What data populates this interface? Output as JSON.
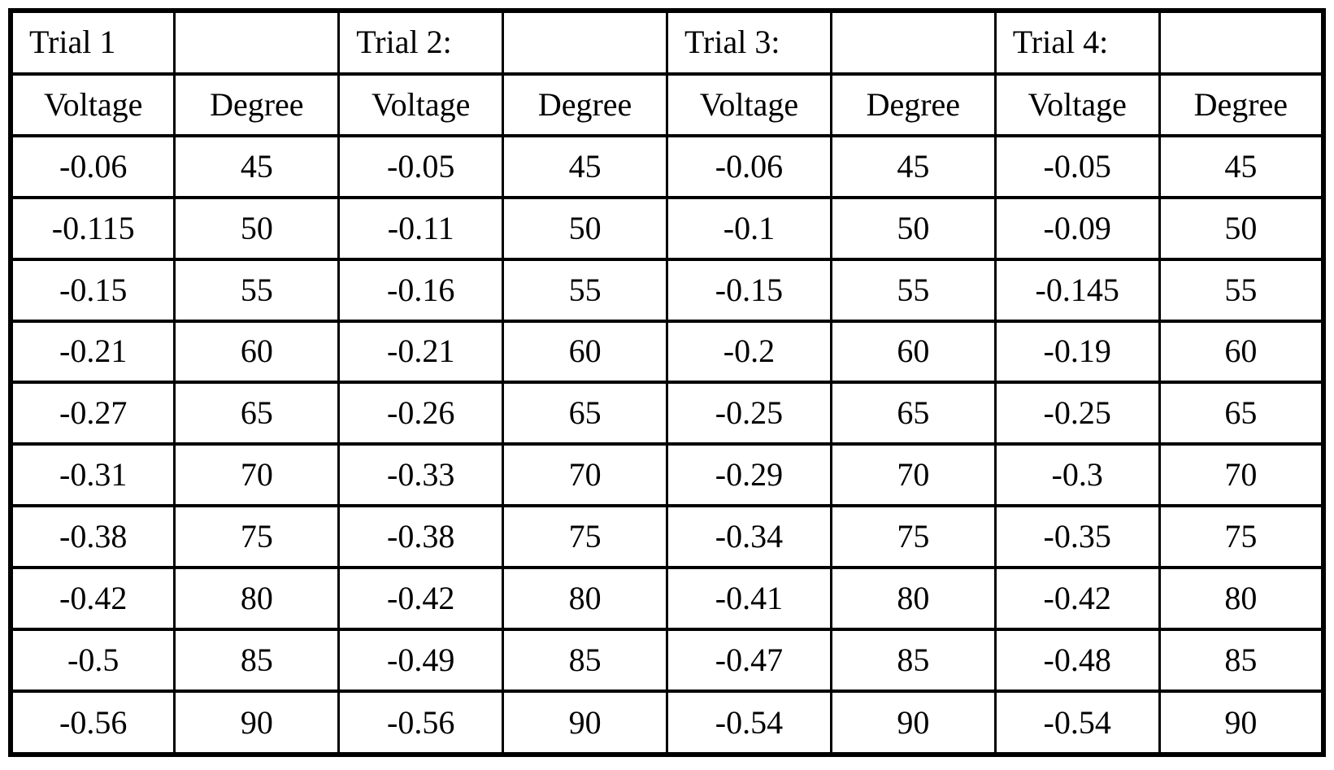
{
  "table": {
    "trial_headers": [
      "Trial 1",
      "",
      "Trial 2:",
      "",
      "Trial 3:",
      "",
      "Trial 4:",
      ""
    ],
    "column_headers": [
      "Voltage",
      "Degree",
      "Voltage",
      "Degree",
      "Voltage",
      "Degree",
      "Voltage",
      "Degree"
    ],
    "rows": [
      [
        "-0.06",
        "45",
        "-0.05",
        "45",
        "-0.06",
        "45",
        "-0.05",
        "45"
      ],
      [
        "-0.115",
        "50",
        "-0.11",
        "50",
        "-0.1",
        "50",
        "-0.09",
        "50"
      ],
      [
        "-0.15",
        "55",
        "-0.16",
        "55",
        "-0.15",
        "55",
        "-0.145",
        "55"
      ],
      [
        "-0.21",
        "60",
        "-0.21",
        "60",
        "-0.2",
        "60",
        "-0.19",
        "60"
      ],
      [
        "-0.27",
        "65",
        "-0.26",
        "65",
        "-0.25",
        "65",
        "-0.25",
        "65"
      ],
      [
        "-0.31",
        "70",
        "-0.33",
        "70",
        "-0.29",
        "70",
        "-0.3",
        "70"
      ],
      [
        "-0.38",
        "75",
        "-0.38",
        "75",
        "-0.34",
        "75",
        "-0.35",
        "75"
      ],
      [
        "-0.42",
        "80",
        "-0.42",
        "80",
        "-0.41",
        "80",
        "-0.42",
        "80"
      ],
      [
        "-0.5",
        "85",
        "-0.49",
        "85",
        "-0.47",
        "85",
        "-0.48",
        "85"
      ],
      [
        "-0.56",
        "90",
        "-0.56",
        "90",
        "-0.54",
        "90",
        "-0.54",
        "90"
      ]
    ]
  },
  "chart_data": {
    "type": "table",
    "degrees": [
      45,
      50,
      55,
      60,
      65,
      70,
      75,
      80,
      85,
      90
    ],
    "series": [
      {
        "name": "Trial 1",
        "voltage": [
          -0.06,
          -0.115,
          -0.15,
          -0.21,
          -0.27,
          -0.31,
          -0.38,
          -0.42,
          -0.5,
          -0.56
        ]
      },
      {
        "name": "Trial 2:",
        "voltage": [
          -0.05,
          -0.11,
          -0.16,
          -0.21,
          -0.26,
          -0.33,
          -0.38,
          -0.42,
          -0.49,
          -0.56
        ]
      },
      {
        "name": "Trial 3:",
        "voltage": [
          -0.06,
          -0.1,
          -0.15,
          -0.2,
          -0.25,
          -0.29,
          -0.34,
          -0.41,
          -0.47,
          -0.54
        ]
      },
      {
        "name": "Trial 4:",
        "voltage": [
          -0.05,
          -0.09,
          -0.145,
          -0.19,
          -0.25,
          -0.3,
          -0.35,
          -0.42,
          -0.48,
          -0.54
        ]
      }
    ]
  },
  "colors": {
    "border": "#000000",
    "background": "#ffffff",
    "text": "#000000"
  }
}
